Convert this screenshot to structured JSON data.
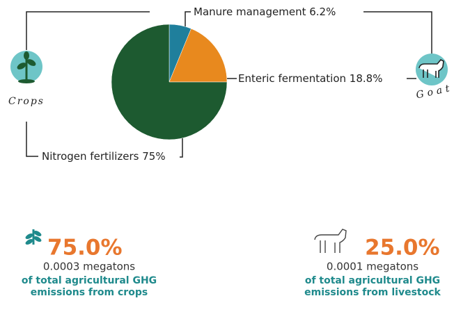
{
  "chart_data": {
    "type": "pie",
    "categories": [
      "Manure management",
      "Enteric fermentation",
      "Nitrogen fertilizers"
    ],
    "values": [
      6.2,
      18.8,
      75
    ],
    "value_labels": [
      "6.2%",
      "18.8%",
      "75%"
    ],
    "colors": [
      "#1f7f9c",
      "#e8891e",
      "#1d5a30"
    ]
  },
  "sources": [
    {
      "label": "Crops",
      "percent": "75.0%",
      "amount": "0.0003 megatons",
      "description": [
        "of total agricultural GHG",
        "emissions from crops"
      ]
    },
    {
      "label": "Goat",
      "percent": "25.0%",
      "amount": "0.0001 megatons",
      "description": [
        "of total agricultural GHG",
        "emissions from livestock"
      ]
    }
  ]
}
